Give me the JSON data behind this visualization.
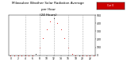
{
  "title": "Milwaukee Weather Solar Radiation Average per Hour (24 Hours)",
  "hours": [
    0,
    1,
    2,
    3,
    4,
    5,
    6,
    7,
    8,
    9,
    10,
    11,
    12,
    13,
    14,
    15,
    16,
    17,
    18,
    19,
    20,
    21,
    22,
    23
  ],
  "values": [
    0,
    0,
    0,
    0,
    0,
    0,
    0,
    20,
    100,
    210,
    320,
    420,
    460,
    400,
    320,
    210,
    100,
    20,
    0,
    0,
    0,
    0,
    0,
    0
  ],
  "dot_color": "#dd0000",
  "black_indices": [
    7,
    12,
    19
  ],
  "bg_color": "#ffffff",
  "grid_color": "#999999",
  "ylim": [
    0,
    500
  ],
  "xlim": [
    -0.5,
    23.5
  ],
  "legend_color": "#cc0000",
  "legend_text": "Cur 0"
}
